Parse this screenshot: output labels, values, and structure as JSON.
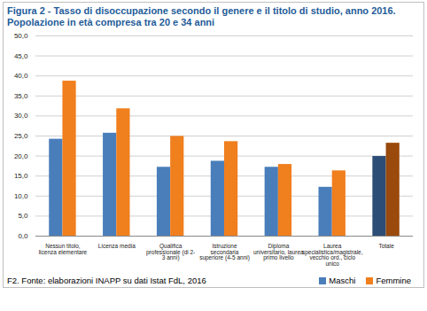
{
  "chart_data": {
    "type": "bar",
    "title": "Figura 2 - Tasso di disoccupazione secondo il genere e il titolo di studio, anno 2016. Popolazione in età compresa tra 20 e 34 anni",
    "source": "F2. Fonte: elaborazioni INAPP su dati Istat FdL, 2016",
    "categories": [
      "Nessun titolo, licenza elementare",
      "Licenza media",
      "Qualifica professionale (di 2-3 anni)",
      "Istruzione secondaria superiore (4-5 anni)",
      "Diploma universitario, laurea primo livello",
      "Laurea specialistica/magistrale, vecchio ord., ciclo unico",
      "Totale"
    ],
    "series": [
      {
        "name": "Maschi",
        "color": "#4a7ebb",
        "colors": [
          "#4a7ebb",
          "#4a7ebb",
          "#4a7ebb",
          "#4a7ebb",
          "#4a7ebb",
          "#4a7ebb",
          "#2c4d75"
        ],
        "values": [
          24.2,
          25.7,
          17.2,
          18.7,
          17.2,
          12.2,
          19.9
        ]
      },
      {
        "name": "Femmine",
        "color": "#f07f1e",
        "colors": [
          "#f07f1e",
          "#f07f1e",
          "#f07f1e",
          "#f07f1e",
          "#f07f1e",
          "#f07f1e",
          "#9a4a0c"
        ],
        "values": [
          38.7,
          31.8,
          24.9,
          23.6,
          17.9,
          16.3,
          23.2
        ]
      }
    ],
    "ylim": [
      0,
      50
    ],
    "yticks": [
      {
        "value": 0,
        "label": "0,0"
      },
      {
        "value": 5,
        "label": "5,0"
      },
      {
        "value": 10,
        "label": "10,0"
      },
      {
        "value": 15,
        "label": "15,0"
      },
      {
        "value": 20,
        "label": "20,0"
      },
      {
        "value": 25,
        "label": "25,0"
      },
      {
        "value": 30,
        "label": "30,0"
      },
      {
        "value": 35,
        "label": "35,0"
      },
      {
        "value": 40,
        "label": "40,0"
      },
      {
        "value": 45,
        "label": "45,0"
      },
      {
        "value": 50,
        "label": "50,0"
      }
    ],
    "grid": true,
    "legend": "bottom-right"
  }
}
